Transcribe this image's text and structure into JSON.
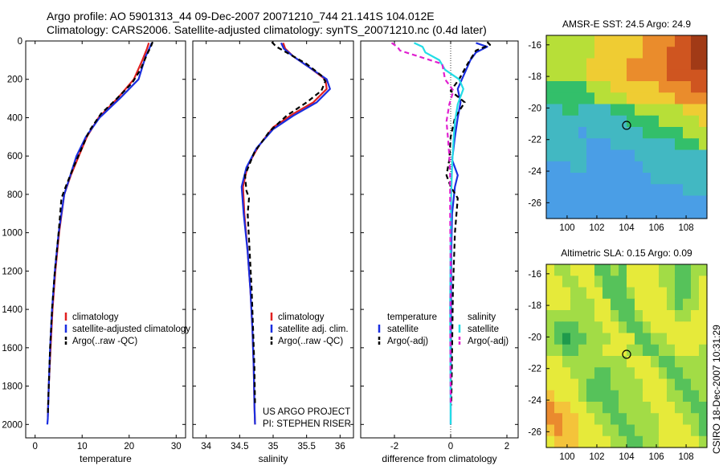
{
  "header": {
    "line1": "Argo profile: AO 5901313_44 09-Dec-2007 20071210_744 21.141S 104.012E",
    "line2": "Climatology: CARS2006. Satellite-adjusted climatology: synTS_20071210.nc (0.4d later)"
  },
  "side_label": "CSIRO 18-Dec-2007 10:31:29",
  "chart_data": [
    {
      "id": "temperature",
      "type": "line",
      "xlabel": "temperature",
      "xlim": [
        -2,
        32
      ],
      "xticks": [
        0,
        10,
        20,
        30
      ],
      "ylim": [
        2070,
        0
      ],
      "yticks": [
        0,
        200,
        400,
        600,
        800,
        1000,
        1200,
        1400,
        1600,
        1800,
        2000
      ],
      "legend": {
        "position": "lower-middle",
        "entries": [
          "climatology",
          "satellite-adjusted climatology",
          "Argo(..raw -QC)"
        ]
      },
      "series": [
        {
          "name": "climatology",
          "color": "#e02020",
          "dash": "solid",
          "points": [
            [
              24.2,
              10
            ],
            [
              23.8,
              40
            ],
            [
              22.8,
              100
            ],
            [
              21.0,
              200
            ],
            [
              17.5,
              300
            ],
            [
              13.5,
              400
            ],
            [
              11.0,
              500
            ],
            [
              9.3,
              600
            ],
            [
              7.6,
              700
            ],
            [
              6.2,
              800
            ],
            [
              5.1,
              1000
            ],
            [
              4.3,
              1200
            ],
            [
              3.7,
              1400
            ],
            [
              3.3,
              1600
            ],
            [
              2.9,
              1800
            ],
            [
              2.7,
              1960
            ]
          ]
        },
        {
          "name": "satellite-adjusted climatology",
          "color": "#1a2ee0",
          "dash": "solid",
          "points": [
            [
              24.8,
              10
            ],
            [
              24.3,
              40
            ],
            [
              23.5,
              80
            ],
            [
              22.0,
              200
            ],
            [
              18.0,
              300
            ],
            [
              13.7,
              400
            ],
            [
              10.8,
              500
            ],
            [
              8.8,
              600
            ],
            [
              7.5,
              700
            ],
            [
              6.2,
              800
            ],
            [
              5.0,
              1000
            ],
            [
              4.2,
              1200
            ],
            [
              3.6,
              1400
            ],
            [
              3.2,
              1600
            ],
            [
              2.9,
              1800
            ],
            [
              2.7,
              1970
            ],
            [
              2.6,
              2000
            ]
          ]
        },
        {
          "name": "Argo(..raw -QC)",
          "color": "#000000",
          "dash": "6,4",
          "points": [
            [
              25.0,
              5
            ],
            [
              24.6,
              30
            ],
            [
              23.8,
              70
            ],
            [
              22.4,
              150
            ],
            [
              20.6,
              220
            ],
            [
              17.0,
              310
            ],
            [
              14.0,
              380
            ],
            [
              11.5,
              470
            ],
            [
              9.9,
              560
            ],
            [
              8.3,
              650
            ],
            [
              6.5,
              760
            ],
            [
              5.6,
              820
            ],
            [
              5.0,
              1000
            ],
            [
              4.2,
              1200
            ],
            [
              3.6,
              1400
            ],
            [
              3.2,
              1600
            ],
            [
              2.9,
              1800
            ],
            [
              2.7,
              1950
            ]
          ]
        }
      ]
    },
    {
      "id": "salinity",
      "type": "line",
      "xlabel": "salinity",
      "xlim": [
        33.8,
        36.2
      ],
      "xticks": [
        34,
        34.5,
        35,
        35.5,
        36
      ],
      "ylim": [
        2070,
        0
      ],
      "yticks": [
        0,
        200,
        400,
        600,
        800,
        1000,
        1200,
        1400,
        1600,
        1800,
        2000
      ],
      "legend": {
        "position": "lower-right",
        "entries": [
          "climatology",
          "satellite adj. clim.",
          "Argo(..raw -QC)"
        ]
      },
      "annotation": [
        "US ARGO PROJECT",
        "PI: STEPHEN RISER"
      ],
      "series": [
        {
          "name": "climatology",
          "color": "#e02020",
          "dash": "solid",
          "points": [
            [
              35.15,
              10
            ],
            [
              35.18,
              40
            ],
            [
              35.3,
              80
            ],
            [
              35.55,
              140
            ],
            [
              35.78,
              200
            ],
            [
              35.8,
              250
            ],
            [
              35.6,
              320
            ],
            [
              35.3,
              380
            ],
            [
              35.0,
              450
            ],
            [
              34.78,
              550
            ],
            [
              34.62,
              650
            ],
            [
              34.55,
              760
            ],
            [
              34.57,
              900
            ],
            [
              34.62,
              1100
            ],
            [
              34.66,
              1300
            ],
            [
              34.69,
              1500
            ],
            [
              34.71,
              1700
            ],
            [
              34.72,
              1900
            ],
            [
              34.73,
              2000
            ]
          ]
        },
        {
          "name": "satellite adj. clim.",
          "color": "#1a2ee0",
          "dash": "solid",
          "points": [
            [
              35.12,
              10
            ],
            [
              35.16,
              40
            ],
            [
              35.3,
              80
            ],
            [
              35.55,
              140
            ],
            [
              35.8,
              200
            ],
            [
              35.85,
              250
            ],
            [
              35.65,
              320
            ],
            [
              35.3,
              390
            ],
            [
              35.0,
              460
            ],
            [
              34.75,
              560
            ],
            [
              34.6,
              660
            ],
            [
              34.53,
              760
            ],
            [
              34.56,
              900
            ],
            [
              34.62,
              1100
            ],
            [
              34.66,
              1300
            ],
            [
              34.69,
              1500
            ],
            [
              34.71,
              1700
            ],
            [
              34.72,
              1900
            ],
            [
              34.73,
              2000
            ]
          ]
        },
        {
          "name": "Argo(..raw -QC)",
          "color": "#000000",
          "dash": "6,4",
          "points": [
            [
              34.98,
              5
            ],
            [
              35.02,
              20
            ],
            [
              35.05,
              30
            ],
            [
              35.2,
              60
            ],
            [
              35.5,
              120
            ],
            [
              35.72,
              180
            ],
            [
              35.78,
              210
            ],
            [
              35.72,
              260
            ],
            [
              35.5,
              320
            ],
            [
              35.2,
              390
            ],
            [
              34.95,
              470
            ],
            [
              34.72,
              580
            ],
            [
              34.58,
              700
            ],
            [
              34.6,
              780
            ],
            [
              34.64,
              820
            ],
            [
              34.62,
              900
            ],
            [
              34.65,
              1100
            ],
            [
              34.68,
              1300
            ],
            [
              34.7,
              1500
            ],
            [
              34.72,
              1700
            ],
            [
              34.73,
              1900
            ]
          ]
        }
      ]
    },
    {
      "id": "difference",
      "type": "line",
      "xlabel": "difference from climatology",
      "xlim": [
        -3.2,
        2.4
      ],
      "xticks": [
        -2,
        0,
        2
      ],
      "ylim": [
        2070,
        0
      ],
      "yticks": [
        0,
        200,
        400,
        600,
        800,
        1000,
        1200,
        1400,
        1600,
        1800,
        2000
      ],
      "zero_line": true,
      "legend": {
        "position": "lower-middle",
        "headers": [
          "temperature",
          "salinity"
        ],
        "entries": [
          "satellite",
          "Argo(-adj)",
          "satellite",
          "Argo(-adj)"
        ]
      },
      "series": [
        {
          "name": "temperature satellite",
          "color": "#1a2ee0",
          "dash": "solid",
          "points": [
            [
              0.9,
              10
            ],
            [
              1.3,
              30
            ],
            [
              0.9,
              60
            ],
            [
              0.7,
              100
            ],
            [
              0.55,
              150
            ],
            [
              0.4,
              200
            ],
            [
              0.25,
              250
            ],
            [
              0.35,
              320
            ],
            [
              0.25,
              400
            ],
            [
              0.15,
              500
            ],
            [
              0.05,
              620
            ],
            [
              0.25,
              700
            ],
            [
              0.15,
              760
            ],
            [
              0.05,
              900
            ],
            [
              0.02,
              1100
            ],
            [
              0.01,
              1400
            ],
            [
              0.0,
              2000
            ]
          ]
        },
        {
          "name": "temperature Argo(-adj)",
          "color": "#000000",
          "dash": "6,4",
          "points": [
            [
              1.3,
              5
            ],
            [
              1.4,
              20
            ],
            [
              0.9,
              50
            ],
            [
              0.6,
              120
            ],
            [
              0.3,
              200
            ],
            [
              0.0,
              260
            ],
            [
              0.5,
              320
            ],
            [
              0.15,
              400
            ],
            [
              0.0,
              500
            ],
            [
              -0.05,
              620
            ],
            [
              -0.15,
              700
            ],
            [
              0.0,
              760
            ],
            [
              0.25,
              820
            ],
            [
              0.15,
              1000
            ],
            [
              0.08,
              1300
            ],
            [
              0.05,
              1600
            ],
            [
              0.02,
              1900
            ]
          ]
        },
        {
          "name": "salinity satellite",
          "color": "#22dde6",
          "dash": "solid",
          "points": [
            [
              -1.3,
              10
            ],
            [
              -1.0,
              30
            ],
            [
              -0.9,
              60
            ],
            [
              -0.4,
              100
            ],
            [
              -0.2,
              150
            ],
            [
              0.3,
              200
            ],
            [
              0.45,
              250
            ],
            [
              0.25,
              330
            ],
            [
              0.15,
              420
            ],
            [
              0.1,
              520
            ],
            [
              0.05,
              650
            ],
            [
              0.02,
              800
            ],
            [
              0.0,
              1000
            ],
            [
              -0.02,
              1400
            ],
            [
              0.0,
              2000
            ]
          ]
        },
        {
          "name": "salinity Argo(-adj)",
          "color": "#e020d0",
          "dash": "6,4",
          "points": [
            [
              -2.1,
              10
            ],
            [
              -1.9,
              30
            ],
            [
              -1.8,
              50
            ],
            [
              -0.3,
              120
            ],
            [
              -0.2,
              200
            ],
            [
              0.1,
              260
            ],
            [
              -0.05,
              330
            ],
            [
              -0.15,
              420
            ],
            [
              -0.1,
              500
            ],
            [
              -0.05,
              600
            ],
            [
              -0.02,
              700
            ],
            [
              -0.02,
              900
            ],
            [
              0.0,
              1200
            ],
            [
              -0.01,
              1500
            ],
            [
              0.0,
              1900
            ]
          ]
        }
      ]
    },
    {
      "id": "sst_map",
      "type": "heatmap",
      "title": "AMSR-E SST: 24.5 Argo: 24.9",
      "xlim": [
        98.6,
        109.4
      ],
      "ylim": [
        -27,
        -15.4
      ],
      "xticks": [
        100,
        102,
        104,
        106,
        108
      ],
      "yticks": [
        -16,
        -18,
        -20,
        -22,
        -24,
        -26
      ],
      "marker": {
        "lon": 104.0,
        "lat": -21.1
      },
      "grid_rows": [
        "33333344444455556677",
        "33333344444455566677",
        "33333444445555566677",
        "33333444445555566666",
        "22222333444444555566",
        "22222233334444445555",
        "11221111222333333444",
        "11111111112222333334",
        "11110111111122222333",
        "11111000111111112223",
        "11111000000111111111",
        "00011000000011111111",
        "00000000000001111111",
        "00000000000000000111",
        "00000000000000000000",
        "00000000000000000000"
      ],
      "palette": [
        "#4a9ee6",
        "#42b8c2",
        "#33bf6a",
        "#b7df38",
        "#efcc33",
        "#ea8c2c",
        "#cf5520",
        "#a13a16"
      ]
    },
    {
      "id": "sla_map",
      "type": "heatmap",
      "title": "Altimetric SLA: 0.15 Argo: 0.09",
      "xlim": [
        98.6,
        109.4
      ],
      "ylim": [
        -27,
        -15.4
      ],
      "xticks": [
        100,
        102,
        104,
        106,
        108
      ],
      "yticks": [
        -16,
        -18,
        -20,
        -22,
        -24,
        -26
      ],
      "marker": {
        "lon": 104.0,
        "lat": -21.1
      },
      "grid_rows": [
        "32233311213333221122",
        "33223321113333221123",
        "33322331112333321123",
        "33322233111333321223",
        "22222233211233332233",
        "21112223321123333333",
        "21011222333112233333",
        "22112223332211223332",
        "33222222223332112222",
        "33322211222333211222",
        "33332111222233321122",
        "43332111122233322112",
        "54433221122223332211",
        "55443322112222333221",
        "45443332211222333321",
        "34443333221122333332"
      ],
      "palette": [
        "#1f9a4c",
        "#56c25a",
        "#a2dc46",
        "#e6ea3a",
        "#f4c33a",
        "#ea8a2e"
      ]
    }
  ]
}
